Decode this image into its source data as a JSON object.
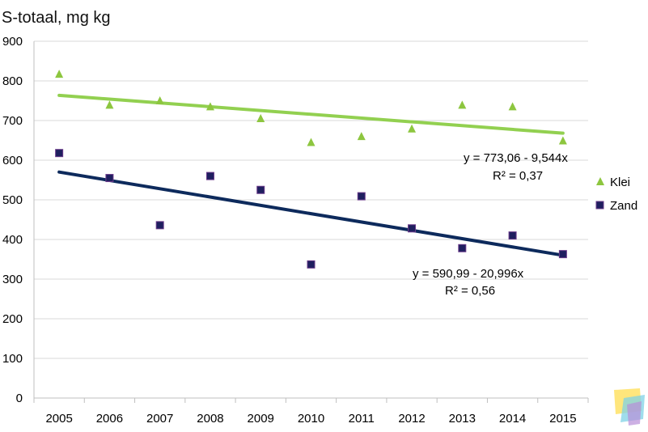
{
  "chart_data": {
    "type": "scatter",
    "title": "S-totaal, mg kg",
    "xlabel": "",
    "ylabel": "",
    "categories": [
      "2005",
      "2006",
      "2007",
      "2008",
      "2009",
      "2010",
      "2011",
      "2012",
      "2013",
      "2014",
      "2015"
    ],
    "ylim": [
      0,
      900
    ],
    "yticks": [
      0,
      100,
      200,
      300,
      400,
      500,
      600,
      700,
      800,
      900
    ],
    "grid": true,
    "legend_position": "right",
    "series": [
      {
        "name": "Klei",
        "marker": "triangle",
        "color": "#8dc63f",
        "values": [
          818,
          740,
          751,
          736,
          706,
          646,
          661,
          680,
          740,
          736,
          650
        ],
        "trendline": {
          "equation": "y = 773,06 - 9,544x",
          "r2": "R² = 0,37",
          "intercept": 773.06,
          "slope": -9.544,
          "color": "#92d050"
        }
      },
      {
        "name": "Zand",
        "marker": "square",
        "color": "#1f1f5f",
        "values": [
          618,
          555,
          436,
          560,
          525,
          337,
          509,
          428,
          378,
          410,
          363
        ],
        "trendline": {
          "equation": "y = 590,99 - 20,996x",
          "r2": "R² = 0,56",
          "intercept": 590.99,
          "slope": -20.996,
          "color": "#0d2a5c"
        }
      }
    ]
  },
  "logo": {
    "colors": [
      "#ffe36e",
      "#7fd1e6",
      "#b88fd8"
    ]
  }
}
